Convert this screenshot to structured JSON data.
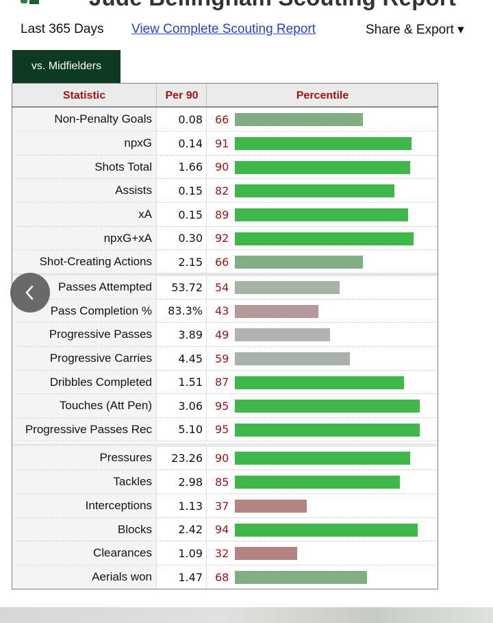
{
  "header": {
    "title": "Jude Bellingham Scouting Report",
    "period": "Last 365 Days",
    "view_link": "View Complete Scouting Report",
    "share_export": "Share & Export ▾"
  },
  "tabs": [
    {
      "label": "vs. Midfielders",
      "active": true
    }
  ],
  "table": {
    "columns": [
      "Statistic",
      "Per 90",
      "Percentile"
    ],
    "groups": [
      [
        {
          "stat": "Non-Penalty Goals",
          "per90": "0.08",
          "percentile": 66
        },
        {
          "stat": "npxG",
          "per90": "0.14",
          "percentile": 91
        },
        {
          "stat": "Shots Total",
          "per90": "1.66",
          "percentile": 90
        },
        {
          "stat": "Assists",
          "per90": "0.15",
          "percentile": 82
        },
        {
          "stat": "xA",
          "per90": "0.15",
          "percentile": 89
        },
        {
          "stat": "npxG+xA",
          "per90": "0.30",
          "percentile": 92
        },
        {
          "stat": "Shot-Creating Actions",
          "per90": "2.15",
          "percentile": 66
        }
      ],
      [
        {
          "stat": "Passes Attempted",
          "per90": "53.72",
          "percentile": 54
        },
        {
          "stat": "Pass Completion %",
          "per90": "83.3%",
          "percentile": 43
        },
        {
          "stat": "Progressive Passes",
          "per90": "3.89",
          "percentile": 49
        },
        {
          "stat": "Progressive Carries",
          "per90": "4.45",
          "percentile": 59
        },
        {
          "stat": "Dribbles Completed",
          "per90": "1.51",
          "percentile": 87
        },
        {
          "stat": "Touches (Att Pen)",
          "per90": "3.06",
          "percentile": 95
        },
        {
          "stat": "Progressive Passes Rec",
          "per90": "5.10",
          "percentile": 95
        }
      ],
      [
        {
          "stat": "Pressures",
          "per90": "23.26",
          "percentile": 90
        },
        {
          "stat": "Tackles",
          "per90": "2.98",
          "percentile": 85
        },
        {
          "stat": "Interceptions",
          "per90": "1.13",
          "percentile": 37
        },
        {
          "stat": "Blocks",
          "per90": "2.42",
          "percentile": 94
        },
        {
          "stat": "Clearances",
          "per90": "1.09",
          "percentile": 32
        },
        {
          "stat": "Aerials won",
          "per90": "1.47",
          "percentile": 68
        }
      ]
    ]
  },
  "colors": {
    "tab_bg": "#0d3b22",
    "header_text": "#a01515",
    "link": "#2b3fd1"
  },
  "icons": {
    "back": "chevron-left-icon"
  }
}
